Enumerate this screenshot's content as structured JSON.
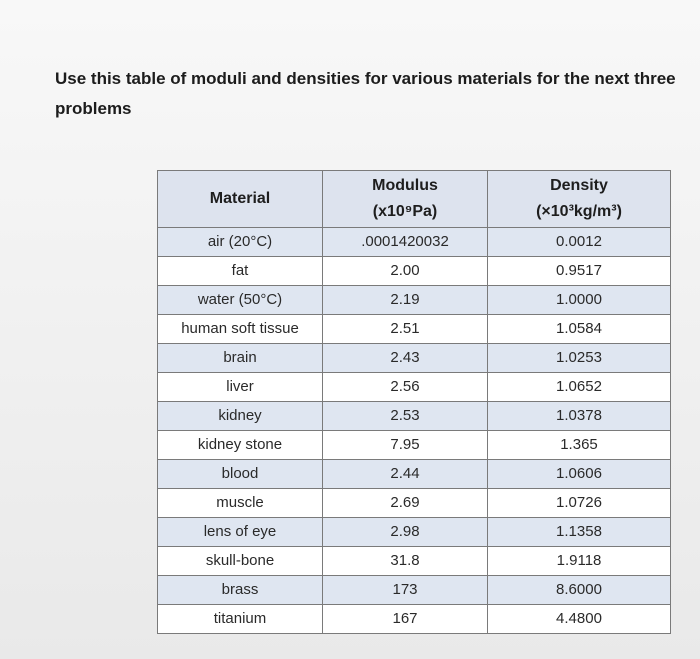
{
  "prompt": "Use this table of moduli and densities for various materials for the next three problems",
  "table": {
    "headers": [
      {
        "line1": "Material",
        "line2": ""
      },
      {
        "line1": "Modulus",
        "line2": "(x10⁹Pa)"
      },
      {
        "line1": "Density",
        "line2": "(×10³kg/m³)"
      }
    ],
    "rows": [
      {
        "material": "air (20°C)",
        "modulus": ".0001420032",
        "density": "0.0012"
      },
      {
        "material": "fat",
        "modulus": "2.00",
        "density": "0.9517"
      },
      {
        "material": "water (50°C)",
        "modulus": "2.19",
        "density": "1.0000"
      },
      {
        "material": "human soft tissue",
        "modulus": "2.51",
        "density": "1.0584"
      },
      {
        "material": "brain",
        "modulus": "2.43",
        "density": "1.0253"
      },
      {
        "material": "liver",
        "modulus": "2.56",
        "density": "1.0652"
      },
      {
        "material": "kidney",
        "modulus": "2.53",
        "density": "1.0378"
      },
      {
        "material": "kidney stone",
        "modulus": "7.95",
        "density": "1.365"
      },
      {
        "material": "blood",
        "modulus": "2.44",
        "density": "1.0606"
      },
      {
        "material": "muscle",
        "modulus": "2.69",
        "density": "1.0726"
      },
      {
        "material": "lens of eye",
        "modulus": "2.98",
        "density": "1.1358"
      },
      {
        "material": "skull-bone",
        "modulus": "31.8",
        "density": "1.9118"
      },
      {
        "material": "brass",
        "modulus": "173",
        "density": "8.6000"
      },
      {
        "material": "titanium",
        "modulus": "167",
        "density": "4.4800"
      }
    ]
  }
}
